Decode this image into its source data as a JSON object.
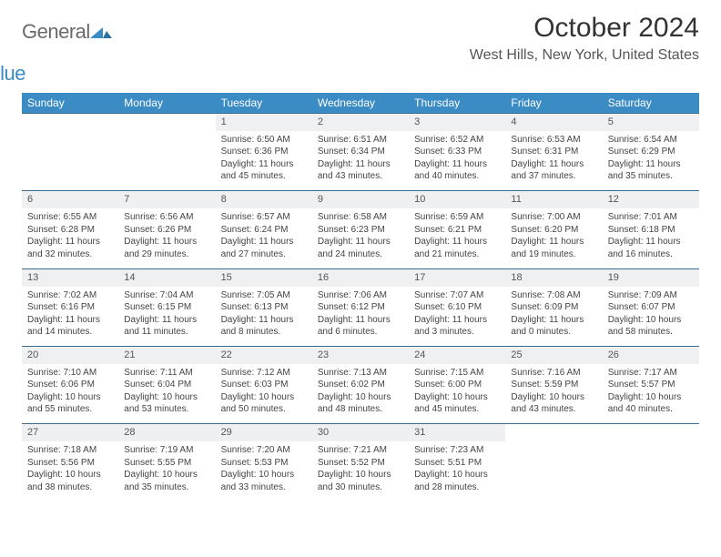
{
  "brand": {
    "word1": "General",
    "word2": "Blue"
  },
  "title": "October 2024",
  "location": "West Hills, New York, United States",
  "colors": {
    "header_bg": "#3b8bc4",
    "header_text": "#ffffff",
    "daynum_bg": "#eef0f1",
    "rule": "#3b6a8a",
    "body_text": "#444444",
    "brand_gray": "#6a6a6a",
    "brand_blue": "#3b8bc4"
  },
  "weekdays": [
    "Sunday",
    "Monday",
    "Tuesday",
    "Wednesday",
    "Thursday",
    "Friday",
    "Saturday"
  ],
  "weeks": [
    [
      null,
      null,
      {
        "d": "1",
        "sr": "6:50 AM",
        "ss": "6:36 PM",
        "dl": "11 hours and 45 minutes."
      },
      {
        "d": "2",
        "sr": "6:51 AM",
        "ss": "6:34 PM",
        "dl": "11 hours and 43 minutes."
      },
      {
        "d": "3",
        "sr": "6:52 AM",
        "ss": "6:33 PM",
        "dl": "11 hours and 40 minutes."
      },
      {
        "d": "4",
        "sr": "6:53 AM",
        "ss": "6:31 PM",
        "dl": "11 hours and 37 minutes."
      },
      {
        "d": "5",
        "sr": "6:54 AM",
        "ss": "6:29 PM",
        "dl": "11 hours and 35 minutes."
      }
    ],
    [
      {
        "d": "6",
        "sr": "6:55 AM",
        "ss": "6:28 PM",
        "dl": "11 hours and 32 minutes."
      },
      {
        "d": "7",
        "sr": "6:56 AM",
        "ss": "6:26 PM",
        "dl": "11 hours and 29 minutes."
      },
      {
        "d": "8",
        "sr": "6:57 AM",
        "ss": "6:24 PM",
        "dl": "11 hours and 27 minutes."
      },
      {
        "d": "9",
        "sr": "6:58 AM",
        "ss": "6:23 PM",
        "dl": "11 hours and 24 minutes."
      },
      {
        "d": "10",
        "sr": "6:59 AM",
        "ss": "6:21 PM",
        "dl": "11 hours and 21 minutes."
      },
      {
        "d": "11",
        "sr": "7:00 AM",
        "ss": "6:20 PM",
        "dl": "11 hours and 19 minutes."
      },
      {
        "d": "12",
        "sr": "7:01 AM",
        "ss": "6:18 PM",
        "dl": "11 hours and 16 minutes."
      }
    ],
    [
      {
        "d": "13",
        "sr": "7:02 AM",
        "ss": "6:16 PM",
        "dl": "11 hours and 14 minutes."
      },
      {
        "d": "14",
        "sr": "7:04 AM",
        "ss": "6:15 PM",
        "dl": "11 hours and 11 minutes."
      },
      {
        "d": "15",
        "sr": "7:05 AM",
        "ss": "6:13 PM",
        "dl": "11 hours and 8 minutes."
      },
      {
        "d": "16",
        "sr": "7:06 AM",
        "ss": "6:12 PM",
        "dl": "11 hours and 6 minutes."
      },
      {
        "d": "17",
        "sr": "7:07 AM",
        "ss": "6:10 PM",
        "dl": "11 hours and 3 minutes."
      },
      {
        "d": "18",
        "sr": "7:08 AM",
        "ss": "6:09 PM",
        "dl": "11 hours and 0 minutes."
      },
      {
        "d": "19",
        "sr": "7:09 AM",
        "ss": "6:07 PM",
        "dl": "10 hours and 58 minutes."
      }
    ],
    [
      {
        "d": "20",
        "sr": "7:10 AM",
        "ss": "6:06 PM",
        "dl": "10 hours and 55 minutes."
      },
      {
        "d": "21",
        "sr": "7:11 AM",
        "ss": "6:04 PM",
        "dl": "10 hours and 53 minutes."
      },
      {
        "d": "22",
        "sr": "7:12 AM",
        "ss": "6:03 PM",
        "dl": "10 hours and 50 minutes."
      },
      {
        "d": "23",
        "sr": "7:13 AM",
        "ss": "6:02 PM",
        "dl": "10 hours and 48 minutes."
      },
      {
        "d": "24",
        "sr": "7:15 AM",
        "ss": "6:00 PM",
        "dl": "10 hours and 45 minutes."
      },
      {
        "d": "25",
        "sr": "7:16 AM",
        "ss": "5:59 PM",
        "dl": "10 hours and 43 minutes."
      },
      {
        "d": "26",
        "sr": "7:17 AM",
        "ss": "5:57 PM",
        "dl": "10 hours and 40 minutes."
      }
    ],
    [
      {
        "d": "27",
        "sr": "7:18 AM",
        "ss": "5:56 PM",
        "dl": "10 hours and 38 minutes."
      },
      {
        "d": "28",
        "sr": "7:19 AM",
        "ss": "5:55 PM",
        "dl": "10 hours and 35 minutes."
      },
      {
        "d": "29",
        "sr": "7:20 AM",
        "ss": "5:53 PM",
        "dl": "10 hours and 33 minutes."
      },
      {
        "d": "30",
        "sr": "7:21 AM",
        "ss": "5:52 PM",
        "dl": "10 hours and 30 minutes."
      },
      {
        "d": "31",
        "sr": "7:23 AM",
        "ss": "5:51 PM",
        "dl": "10 hours and 28 minutes."
      },
      null,
      null
    ]
  ],
  "labels": {
    "sunrise": "Sunrise: ",
    "sunset": "Sunset: ",
    "daylight": "Daylight: "
  }
}
